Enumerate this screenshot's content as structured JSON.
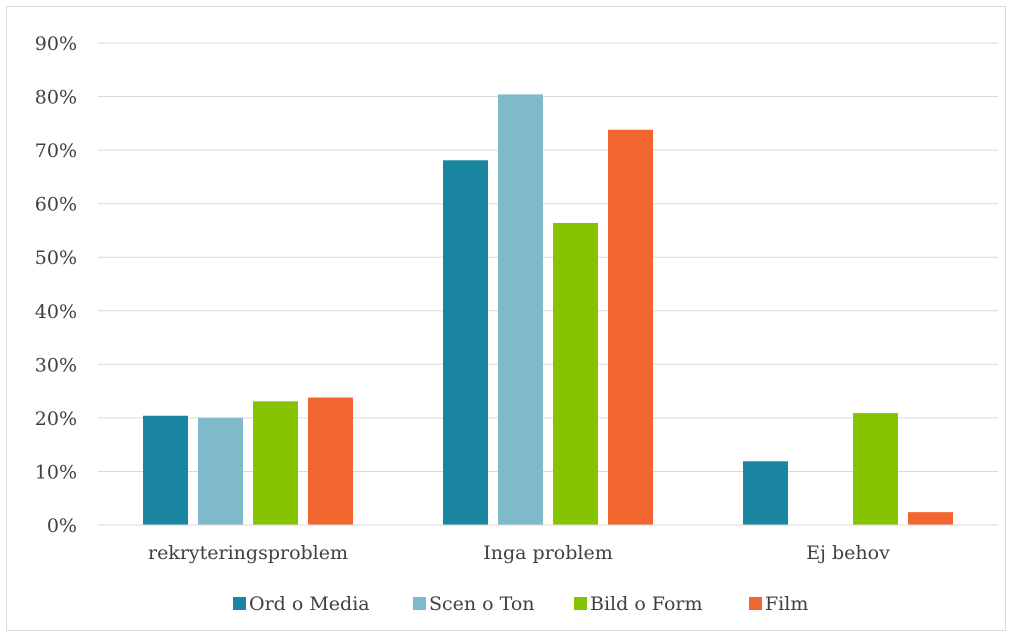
{
  "chart_data": {
    "type": "bar",
    "categories": [
      "rekryteringsproblem",
      "Inga problem",
      "Ej behov"
    ],
    "series": [
      {
        "name": "Ord o Media",
        "values": [
          20.4,
          68.1,
          11.9
        ],
        "color": "#1a85a1"
      },
      {
        "name": "Scen o Ton",
        "values": [
          20.0,
          80.4,
          0
        ],
        "color": "#7fbacb"
      },
      {
        "name": "Bild o Form",
        "values": [
          23.1,
          56.4,
          20.9
        ],
        "color": "#86c402"
      },
      {
        "name": "Film",
        "values": [
          23.8,
          73.8,
          2.4
        ],
        "color": "#f1652f"
      }
    ],
    "ylim": [
      0,
      90
    ],
    "yticks": [
      0,
      10,
      20,
      30,
      40,
      50,
      60,
      70,
      80,
      90
    ],
    "ytick_labels": [
      "0%",
      "10%",
      "20%",
      "30%",
      "40%",
      "50%",
      "60%",
      "70%",
      "80%",
      "90%"
    ],
    "grid": true,
    "legend_position": "bottom"
  }
}
